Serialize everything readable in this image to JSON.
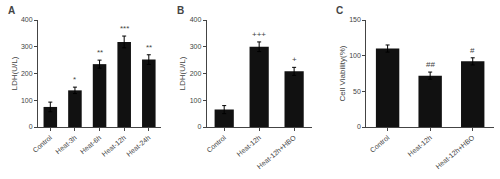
{
  "chart_data": [
    {
      "type": "bar",
      "title": "A",
      "categories": [
        "Control",
        "Heat-3h",
        "Heat-6h",
        "Heat-12h",
        "Heat-24h"
      ],
      "values": [
        75,
        137,
        235,
        318,
        252
      ],
      "errors": [
        18,
        12,
        15,
        22,
        18
      ],
      "ylabel": "LDH(U/L)",
      "ylim": [
        0,
        400
      ],
      "yticks": [
        0,
        100,
        200,
        300,
        400
      ],
      "annotations": [
        null,
        "*",
        "**",
        "***",
        "**"
      ],
      "color": "#111111",
      "grid": false
    },
    {
      "type": "bar",
      "title": "B",
      "categories": [
        "Control",
        "Heat-12h",
        "Heat-12h+HBO"
      ],
      "values": [
        65,
        300,
        208
      ],
      "errors": [
        15,
        18,
        15
      ],
      "ylabel": "LDH(U/L)",
      "ylim": [
        0,
        400
      ],
      "yticks": [
        0,
        100,
        200,
        300,
        400
      ],
      "annotations": [
        null,
        "+++",
        "+"
      ],
      "color": "#111111",
      "grid": false
    },
    {
      "type": "bar",
      "title": "C",
      "categories": [
        "Control",
        "Heat-12h",
        "Heat-12h+HBO"
      ],
      "values": [
        110,
        72,
        92
      ],
      "errors": [
        5,
        5,
        5
      ],
      "ylabel": "Cell Viability(%)",
      "ylim": [
        0,
        150
      ],
      "yticks": [
        0,
        50,
        100,
        150
      ],
      "annotations": [
        null,
        "##",
        "#"
      ],
      "color": "#111111",
      "grid": false
    }
  ]
}
